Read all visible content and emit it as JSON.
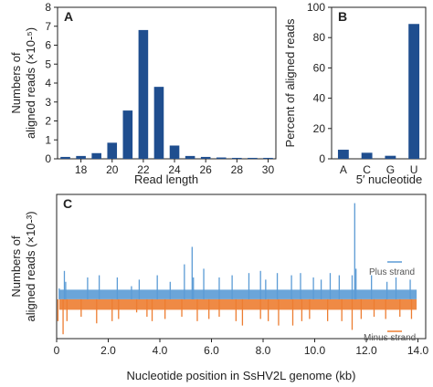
{
  "colors": {
    "blue": "#1f4e8f",
    "plus": "#5b9bd5",
    "minus": "#ed7d31"
  },
  "chart_data": [
    {
      "type": "bar",
      "panel": "A",
      "xlabel": "Read length",
      "ylabel_line1": "Numbers of",
      "ylabel_line2": "aligned reads (×10-⁵)",
      "categories": [
        17,
        18,
        19,
        20,
        21,
        22,
        23,
        24,
        25,
        26,
        27,
        28,
        29,
        30
      ],
      "values": [
        0.1,
        0.15,
        0.3,
        0.85,
        2.55,
        6.8,
        3.8,
        0.7,
        0.15,
        0.1,
        0.07,
        0.05,
        0.05,
        0.05
      ],
      "ylim": [
        0,
        8
      ],
      "yticks": [
        0,
        1,
        2,
        3,
        4,
        5,
        6,
        7,
        8
      ],
      "xticks": [
        18,
        20,
        22,
        24,
        26,
        28,
        30
      ]
    },
    {
      "type": "bar",
      "panel": "B",
      "xlabel": "5′ nucleotide",
      "ylabel": "Percent of aligned reads",
      "categories": [
        "A",
        "C",
        "G",
        "U"
      ],
      "values": [
        6,
        4,
        2,
        89
      ],
      "ylim": [
        0,
        100
      ],
      "yticks": [
        0,
        20,
        40,
        60,
        80,
        100
      ]
    },
    {
      "type": "bar",
      "panel": "C",
      "xlabel": "Nucleotide position in SsHV2L genome (kb)",
      "ylabel_line1": "Numbers of",
      "ylabel_line2": "aligned reads (×10-³)",
      "xlim": [
        0,
        14.3
      ],
      "ylim": [
        -9,
        24
      ],
      "xticks": [
        "0",
        "2.0",
        "4.0",
        "6.0",
        "8.0",
        "10.0",
        "12.0",
        "14.0"
      ],
      "series": [
        {
          "name": "Plus strand",
          "x": [
            0.1,
            0.3,
            0.35,
            1.2,
            1.65,
            2.35,
            2.9,
            3.2,
            3.9,
            4.4,
            4.95,
            5.25,
            5.3,
            5.7,
            6.3,
            6.8,
            7.45,
            7.9,
            8.1,
            8.55,
            9.1,
            9.45,
            9.95,
            10.25,
            10.6,
            10.95,
            11.45,
            11.55,
            11.6,
            12.2,
            12.8,
            13.15,
            13.7
          ],
          "values": [
            2.5,
            6.5,
            4,
            5,
            5.5,
            5,
            3,
            4.5,
            5.5,
            4,
            8,
            12,
            5,
            7,
            5,
            5.5,
            6,
            6.5,
            4.5,
            6,
            5.5,
            6,
            5,
            4.5,
            6,
            5.5,
            5.5,
            22,
            7,
            5.5,
            4,
            5,
            4.5
          ]
        },
        {
          "name": "Minus strand",
          "x": [
            0.05,
            0.25,
            0.4,
            0.95,
            1.55,
            2.15,
            2.4,
            3.1,
            3.5,
            3.7,
            4.2,
            4.85,
            5.45,
            5.9,
            6.3,
            6.95,
            7.2,
            7.9,
            8.2,
            8.6,
            9.15,
            9.5,
            9.8,
            10.5,
            11.05,
            11.45,
            11.8,
            12.3,
            12.75,
            13.3,
            13.75
          ],
          "values": [
            -5,
            -8,
            -5,
            -4,
            -5.5,
            -5,
            -4.5,
            -3,
            -4,
            -5,
            -4.5,
            -4,
            -5,
            -4.5,
            -4,
            -5,
            -6,
            -4.5,
            -5,
            -6,
            -6,
            -5,
            -4.5,
            -5,
            -5,
            -7,
            -4.5,
            -4,
            -4.5,
            -4,
            -4.5
          ]
        }
      ]
    }
  ]
}
